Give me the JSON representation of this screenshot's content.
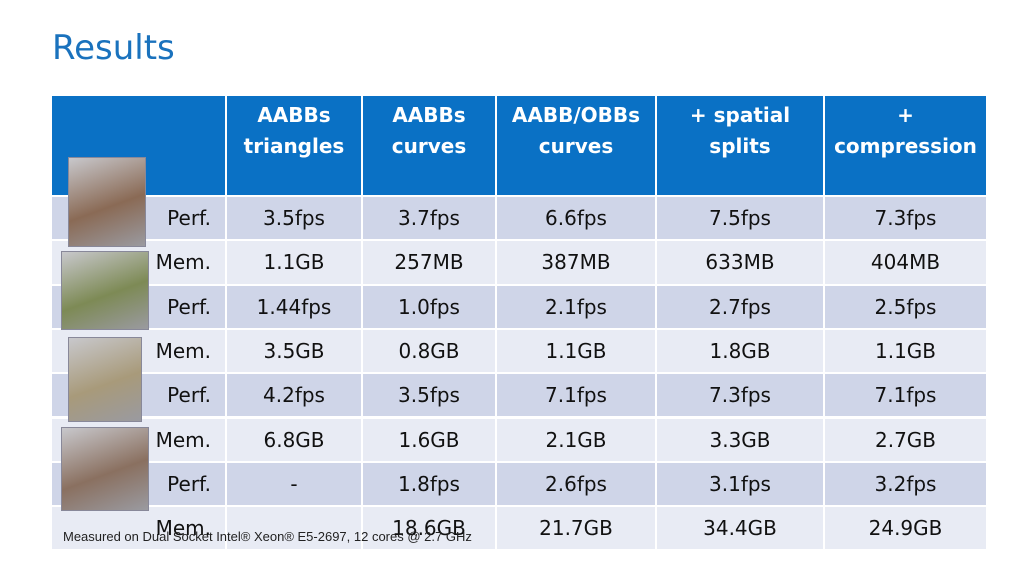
{
  "title": "Results",
  "table": {
    "header": [
      "AABBs triangles",
      "AABBs curves",
      "AABB/OBBs curves",
      "+ spatial splits",
      "+ compression"
    ],
    "rows": [
      [
        "Perf.",
        "3.5fps",
        "3.7fps",
        "6.6fps",
        "7.5fps",
        "7.3fps"
      ],
      [
        "Mem.",
        "1.1GB",
        "257MB",
        "387MB",
        "633MB",
        "404MB"
      ],
      [
        "Perf.",
        "1.44fps",
        "1.0fps",
        "2.1fps",
        "2.7fps",
        "2.5fps"
      ],
      [
        "Mem.",
        "3.5GB",
        "0.8GB",
        "1.1GB",
        "1.8GB",
        "1.1GB"
      ],
      [
        "Perf.",
        "4.2fps",
        "3.5fps",
        "7.1fps",
        "7.3fps",
        "7.1fps"
      ],
      [
        "Mem.",
        "6.8GB",
        "1.6GB",
        "2.1GB",
        "3.3GB",
        "2.7GB"
      ],
      [
        "Perf.",
        "-",
        "1.8fps",
        "2.6fps",
        "3.1fps",
        "3.2fps"
      ],
      [
        "Mem.",
        null,
        "18.6GB",
        "21.7GB",
        "34.4GB",
        "24.9GB"
      ]
    ]
  },
  "footnote": "Measured on Dual Socket Intel® Xeon®  E5-2697, 12 cores @ 2.7 GHz"
}
